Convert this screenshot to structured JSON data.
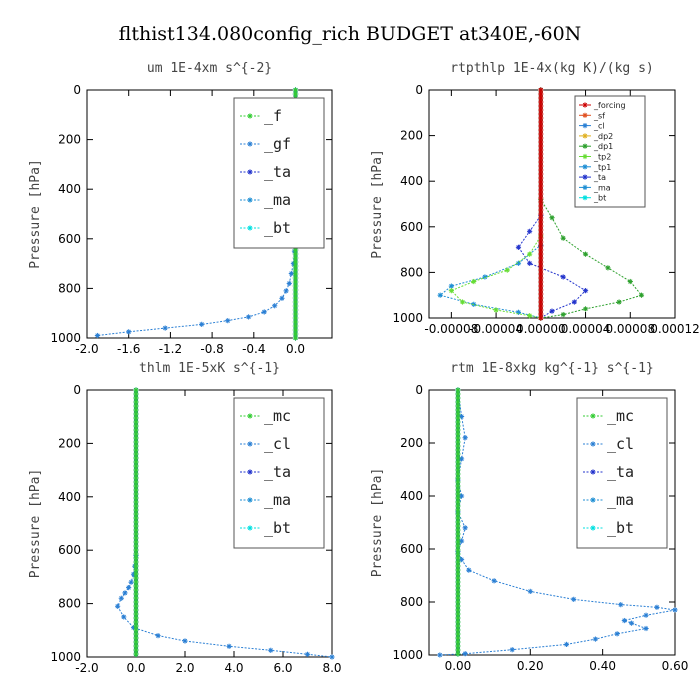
{
  "figure_title": "flthist134.080config_rich  BUDGET at340E,-60N",
  "colors": {
    "_f": "#33cc33",
    "_gf": "#2a7fd4",
    "_ta": "#2233cc",
    "_ma": "#1f8fd4",
    "_bt": "#00e0e0",
    "_forcing": "#cc0000",
    "_sf": "#e05020",
    "_cl": "#2a7fd4",
    "_dp2": "#e0b020",
    "_dp1": "#2ca02c",
    "_tp2": "#66dd33",
    "_tp1": "#1f8fd4",
    "_mc": "#33cc33"
  },
  "chart_data": [
    {
      "type": "line",
      "title": "um  1E-4xm s^{-2}",
      "ylabel": "Pressure [hPa]",
      "xlabel": "",
      "xlim": [
        -2.0,
        0.35
      ],
      "ylim": [
        1000,
        0
      ],
      "xticks": [
        -2.0,
        -1.6,
        -1.2,
        -0.8,
        -0.4,
        0.0
      ],
      "xtick_labels": [
        "-2.0",
        "-1.6",
        "-1.2",
        "-0.8",
        "-0.4",
        "0.0"
      ],
      "yticks": [
        0,
        200,
        400,
        600,
        800,
        1000
      ],
      "ytick_labels": [
        "0",
        "200",
        "400",
        "600",
        "800",
        "1000"
      ],
      "legend_position": "top-right",
      "legend_size": "large",
      "series": [
        {
          "name": "_f",
          "x": [
            0,
            0,
            0,
            0,
            0,
            0,
            0,
            0,
            0,
            0,
            0
          ],
          "y": [
            0,
            100,
            200,
            300,
            400,
            500,
            600,
            700,
            800,
            900,
            1000
          ]
        },
        {
          "name": "_gf",
          "x": [
            0,
            0,
            0,
            0,
            0,
            0,
            0,
            0,
            0,
            0,
            0
          ],
          "y": [
            0,
            100,
            200,
            300,
            400,
            500,
            600,
            700,
            800,
            900,
            1000
          ]
        },
        {
          "name": "_ta",
          "x": [
            0,
            0,
            0,
            0,
            0,
            0,
            0,
            0,
            0,
            0,
            0
          ],
          "y": [
            0,
            100,
            200,
            300,
            400,
            500,
            600,
            700,
            800,
            900,
            1000
          ]
        },
        {
          "name": "_ma",
          "x": [
            0,
            0,
            0,
            0,
            0,
            0,
            0,
            0,
            0,
            0,
            0
          ],
          "y": [
            0,
            100,
            200,
            300,
            400,
            500,
            600,
            700,
            800,
            900,
            1000
          ]
        },
        {
          "name": "_bt",
          "x": [
            0,
            0,
            0,
            0,
            0,
            0,
            0,
            0,
            0,
            0,
            0
          ],
          "y": [
            0,
            100,
            200,
            300,
            400,
            500,
            600,
            700,
            800,
            900,
            1000
          ]
        },
        {
          "name": "",
          "color_key": "_gf",
          "x": [
            0,
            0,
            -0.01,
            -0.02,
            -0.04,
            -0.06,
            -0.09,
            -0.13,
            -0.2,
            -0.3,
            -0.45,
            -0.65,
            -0.9,
            -1.25,
            -1.6,
            -1.9
          ],
          "y": [
            0,
            600,
            650,
            700,
            740,
            780,
            810,
            840,
            870,
            895,
            915,
            930,
            945,
            960,
            975,
            990
          ]
        }
      ]
    },
    {
      "type": "line",
      "title": "rtpthlp  1E-4x(kg K)/(kg s)",
      "ylabel": "Pressure [hPa]",
      "xlabel": "",
      "xlim": [
        -0.0001,
        0.00012
      ],
      "ylim": [
        1000,
        0
      ],
      "xticks": [
        -8e-05,
        -4e-05,
        0.0,
        4e-05,
        8e-05,
        0.00012
      ],
      "xtick_labels": [
        "-0.00008",
        "-0.00004",
        "0.00000",
        "0.00004",
        "0.00008",
        "0.00012"
      ],
      "yticks": [
        0,
        200,
        400,
        600,
        800,
        1000
      ],
      "ytick_labels": [
        "0",
        "200",
        "400",
        "600",
        "800",
        "1000"
      ],
      "legend_position": "top-right",
      "legend_size": "small",
      "series": [
        {
          "name": "_forcing",
          "x": [
            0,
            0
          ],
          "y": [
            0,
            1000
          ]
        },
        {
          "name": "_sf",
          "x": [
            0,
            0
          ],
          "y": [
            0,
            1000
          ]
        },
        {
          "name": "_cl",
          "x": [
            0,
            0
          ],
          "y": [
            0,
            1000
          ]
        },
        {
          "name": "_dp2",
          "x": [
            0,
            0
          ],
          "y": [
            0,
            1000
          ]
        },
        {
          "name": "_dp1",
          "x": [
            0,
            0,
            1e-05,
            2e-05,
            4e-05,
            6e-05,
            8e-05,
            9e-05,
            7e-05,
            4e-05,
            2e-05,
            0
          ],
          "y": [
            0,
            480,
            560,
            650,
            720,
            780,
            840,
            900,
            930,
            960,
            985,
            1000
          ]
        },
        {
          "name": "_tp2",
          "x": [
            0,
            0,
            -1e-05,
            -3e-05,
            -6e-05,
            -8e-05,
            -7e-05,
            -4e-05,
            -1e-05,
            0
          ],
          "y": [
            0,
            640,
            720,
            790,
            840,
            880,
            930,
            965,
            990,
            1000
          ]
        },
        {
          "name": "_tp1",
          "x": [
            0,
            0,
            -2e-05,
            -5e-05,
            -8e-05,
            -9e-05,
            -6e-05,
            -2e-05,
            0
          ],
          "y": [
            0,
            680,
            760,
            820,
            860,
            900,
            940,
            975,
            1000
          ]
        },
        {
          "name": "_ta",
          "x": [
            0,
            0,
            -1e-05,
            -2e-05,
            -1e-05,
            2e-05,
            4e-05,
            3e-05,
            1e-05,
            0
          ],
          "y": [
            0,
            550,
            620,
            690,
            760,
            820,
            880,
            930,
            970,
            1000
          ]
        },
        {
          "name": "_ma",
          "x": [
            0,
            0
          ],
          "y": [
            0,
            1000
          ]
        },
        {
          "name": "_bt",
          "x": [
            0,
            0
          ],
          "y": [
            0,
            1000
          ]
        }
      ]
    },
    {
      "type": "line",
      "title": "thlm  1E-5xK s^{-1}",
      "ylabel": "Pressure [hPa]",
      "xlabel": "",
      "xlim": [
        -2.0,
        8.0
      ],
      "ylim": [
        1000,
        0
      ],
      "xticks": [
        -2.0,
        0.0,
        2.0,
        4.0,
        6.0,
        8.0
      ],
      "xtick_labels": [
        "-2.0",
        "0.0",
        "2.0",
        "4.0",
        "6.0",
        "8.0"
      ],
      "yticks": [
        0,
        200,
        400,
        600,
        800,
        1000
      ],
      "ytick_labels": [
        "0",
        "200",
        "400",
        "600",
        "800",
        "1000"
      ],
      "legend_position": "top-right",
      "legend_size": "large",
      "series": [
        {
          "name": "_mc",
          "x": [
            0,
            0,
            0,
            0,
            0,
            0,
            0,
            0,
            0,
            0,
            0
          ],
          "y": [
            0,
            100,
            200,
            300,
            400,
            500,
            600,
            700,
            800,
            900,
            1000
          ]
        },
        {
          "name": "_cl",
          "x": [
            0,
            0,
            -0.05,
            -0.1,
            -0.2,
            -0.3,
            -0.45,
            -0.6,
            -0.75,
            -0.5,
            -0.1,
            0.9,
            2.0,
            3.8,
            5.5,
            7.0,
            8.0
          ],
          "y": [
            0,
            620,
            660,
            690,
            720,
            740,
            760,
            780,
            810,
            850,
            890,
            920,
            940,
            960,
            975,
            990,
            1000
          ]
        },
        {
          "name": "_ta",
          "x": [
            0,
            0
          ],
          "y": [
            0,
            1000
          ]
        },
        {
          "name": "_ma",
          "x": [
            0,
            0
          ],
          "y": [
            0,
            1000
          ]
        },
        {
          "name": "_bt",
          "x": [
            0,
            0
          ],
          "y": [
            0,
            1000
          ]
        }
      ]
    },
    {
      "type": "line",
      "title": "rtm  1E-8xkg kg^{-1} s^{-1}",
      "ylabel": "Pressure [hPa]",
      "xlabel": "",
      "xlim": [
        -0.08,
        0.6
      ],
      "ylim": [
        1000,
        0
      ],
      "xticks": [
        0.0,
        0.2,
        0.4,
        0.6
      ],
      "xtick_labels": [
        "0.00",
        "0.20",
        "0.40",
        "0.60"
      ],
      "yticks": [
        0,
        200,
        400,
        600,
        800,
        1000
      ],
      "ytick_labels": [
        "0",
        "200",
        "400",
        "600",
        "800",
        "1000"
      ],
      "legend_position": "top-right",
      "legend_size": "large",
      "series": [
        {
          "name": "_mc",
          "x": [
            0,
            0,
            0,
            0,
            0,
            0,
            0,
            0,
            0,
            0,
            0
          ],
          "y": [
            0,
            100,
            200,
            300,
            400,
            500,
            600,
            700,
            800,
            900,
            1000
          ]
        },
        {
          "name": "_cl",
          "x": [
            0,
            0.01,
            0.02,
            0.01,
            0,
            0.01,
            0,
            0.02,
            0.01,
            0,
            0.01,
            0.03,
            0.1,
            0.2,
            0.32,
            0.45,
            0.55,
            0.6,
            0.52,
            0.46,
            0.48,
            0.52,
            0.44,
            0.38,
            0.3,
            0.15,
            0.02,
            -0.05
          ],
          "y": [
            0,
            100,
            180,
            260,
            340,
            400,
            460,
            520,
            570,
            610,
            640,
            680,
            720,
            760,
            790,
            810,
            820,
            830,
            850,
            870,
            880,
            900,
            920,
            940,
            960,
            980,
            995,
            1000
          ]
        },
        {
          "name": "_ta",
          "x": [
            0,
            0
          ],
          "y": [
            0,
            1000
          ]
        },
        {
          "name": "_ma",
          "x": [
            0,
            0
          ],
          "y": [
            0,
            1000
          ]
        },
        {
          "name": "_bt",
          "x": [
            0,
            0
          ],
          "y": [
            0,
            1000
          ]
        }
      ]
    }
  ]
}
